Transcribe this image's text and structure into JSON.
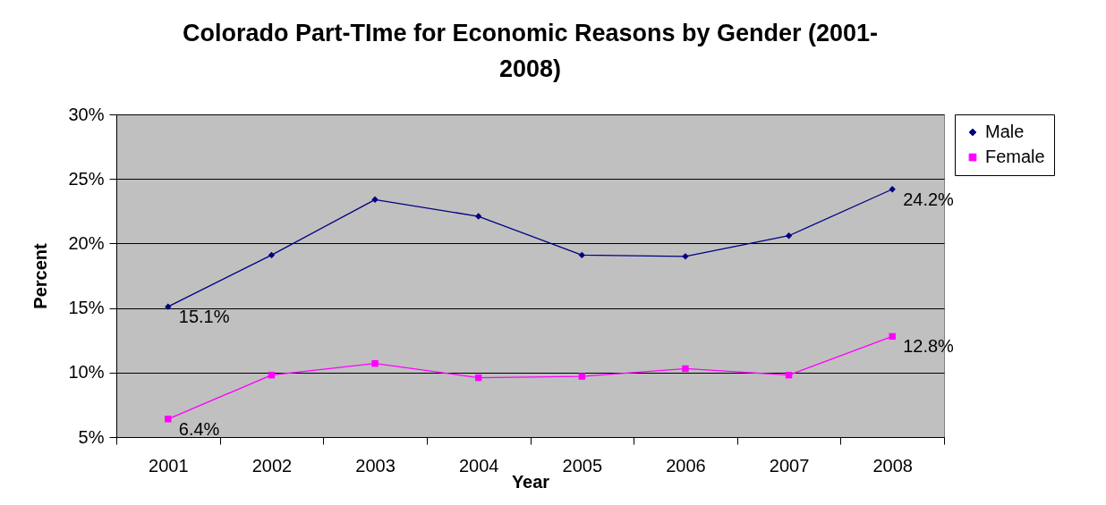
{
  "chart_data": {
    "type": "line",
    "title": "Colorado Part-TIme for Economic Reasons by Gender (2001-2008)",
    "xlabel": "Year",
    "ylabel": "Percent",
    "categories": [
      "2001",
      "2002",
      "2003",
      "2004",
      "2005",
      "2006",
      "2007",
      "2008"
    ],
    "series": [
      {
        "name": "Male",
        "color": "#000080",
        "marker": "diamond",
        "values": [
          15.1,
          19.1,
          23.4,
          22.1,
          19.1,
          19.0,
          20.6,
          24.2
        ],
        "value_labels": [
          "15.1%",
          null,
          null,
          null,
          null,
          null,
          null,
          "24.2%"
        ]
      },
      {
        "name": "Female",
        "color": "#ff00ff",
        "marker": "square",
        "values": [
          6.4,
          9.8,
          10.7,
          9.6,
          9.7,
          10.3,
          9.8,
          12.8
        ],
        "value_labels": [
          "6.4%",
          null,
          null,
          null,
          null,
          null,
          null,
          "12.8%"
        ]
      }
    ],
    "ylim": [
      5,
      30
    ],
    "yticks": [
      {
        "value": 5,
        "label": "5%"
      },
      {
        "value": 10,
        "label": "10%"
      },
      {
        "value": 15,
        "label": "15%"
      },
      {
        "value": 20,
        "label": "20%"
      },
      {
        "value": 25,
        "label": "25%"
      },
      {
        "value": 30,
        "label": "30%"
      }
    ],
    "grid": "y",
    "legend": "right"
  }
}
